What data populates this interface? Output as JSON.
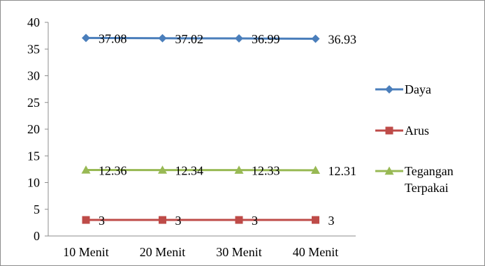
{
  "chart_data": {
    "type": "line",
    "title": "",
    "xlabel": "",
    "ylabel": "",
    "categories": [
      "10 Menit",
      "20 Menit",
      "30 Menit",
      "40 Menit"
    ],
    "ylim": [
      0,
      40
    ],
    "yticks": [
      "0",
      "5",
      "10",
      "15",
      "20",
      "25",
      "30",
      "35",
      "40"
    ],
    "grid": false,
    "legend_position": "right",
    "series": [
      {
        "name": "Daya",
        "values": [
          37.08,
          37.02,
          36.99,
          36.93
        ],
        "labels": [
          "37.08",
          "37.02",
          "36.99",
          "36.93"
        ],
        "color": "#4a7ebb",
        "marker": "diamond"
      },
      {
        "name": "Arus",
        "values": [
          3,
          3,
          3,
          3
        ],
        "labels": [
          "3",
          "3",
          "3",
          "3"
        ],
        "color": "#be4b48",
        "marker": "square"
      },
      {
        "name": "Tegangan Terpakai",
        "name_lines": [
          "Tegangan",
          "Terpakai"
        ],
        "values": [
          12.36,
          12.34,
          12.33,
          12.31
        ],
        "labels": [
          "12.36",
          "12.34",
          "12.33",
          "12.31"
        ],
        "color": "#98b954",
        "marker": "triangle"
      }
    ]
  }
}
